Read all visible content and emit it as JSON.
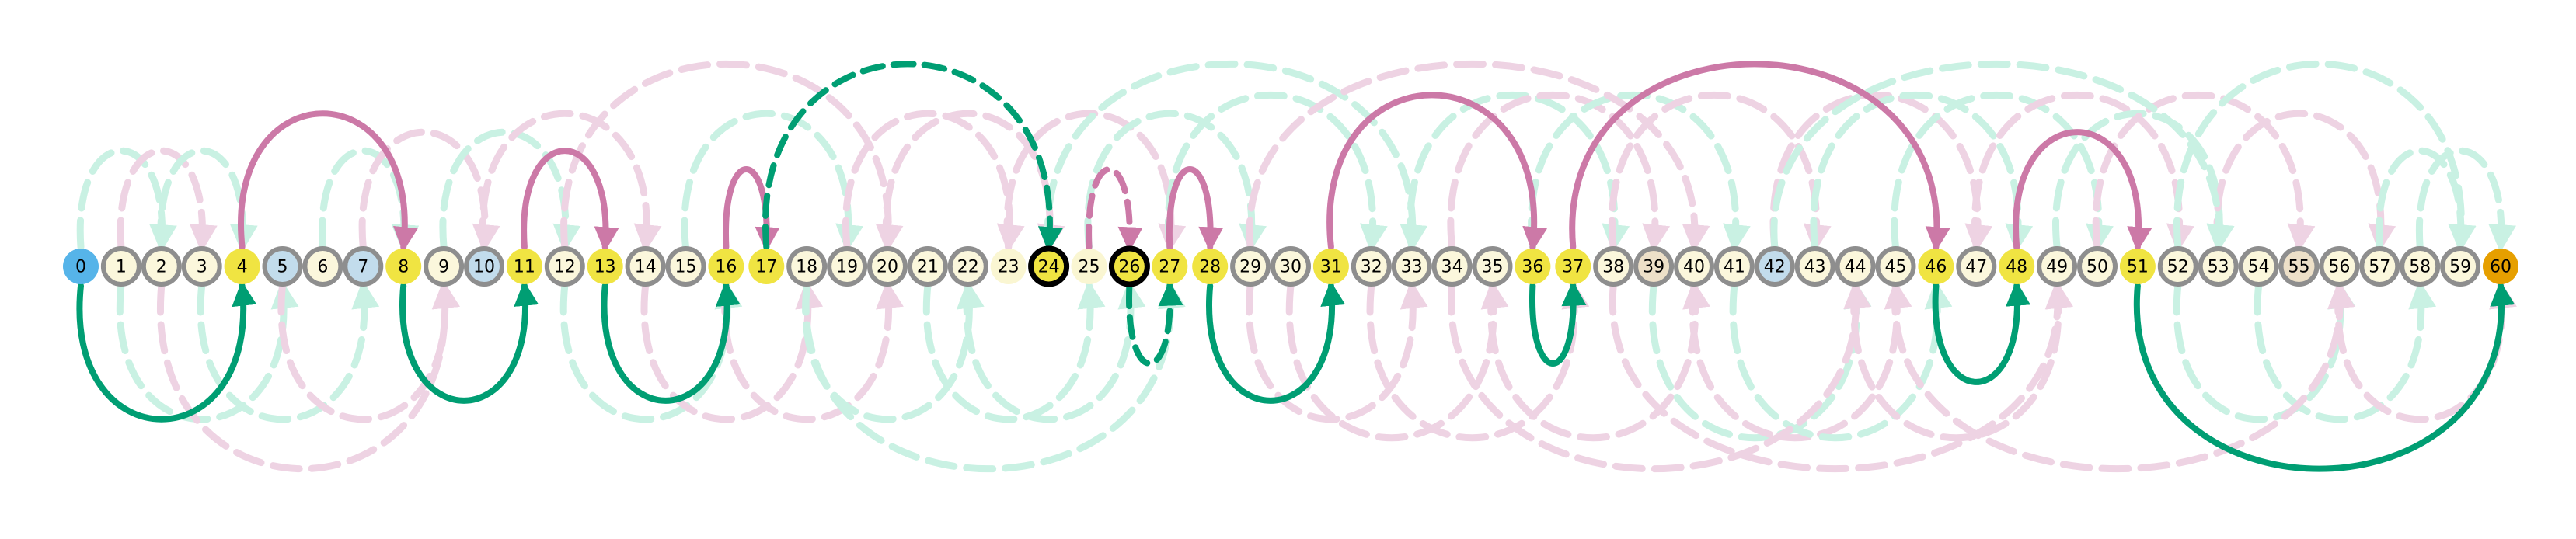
{
  "colors": {
    "bg": "#ffffff",
    "green": "#009E73",
    "pink": "#CC79A7",
    "green_faint": "#c9f1e3",
    "pink_faint": "#eed3e3",
    "yellow": "#F0E442",
    "cream": "#FAF6D2",
    "cream_node": "#FBF7DC",
    "lightblue": "#C2DCEC",
    "tan": "#EDE0C8",
    "blue": "#56B4E9",
    "orange": "#E69F00",
    "ring_gray": "#8E8E8E",
    "ring_black": "#000000"
  },
  "nodes": [
    {
      "label": "0",
      "style": "blue"
    },
    {
      "label": "1",
      "style": "cream"
    },
    {
      "label": "2",
      "style": "cream"
    },
    {
      "label": "3",
      "style": "cream"
    },
    {
      "label": "4",
      "style": "yellow"
    },
    {
      "label": "5",
      "style": "lightblue"
    },
    {
      "label": "6",
      "style": "cream"
    },
    {
      "label": "7",
      "style": "lightblue"
    },
    {
      "label": "8",
      "style": "yellow"
    },
    {
      "label": "9",
      "style": "cream"
    },
    {
      "label": "10",
      "style": "lightblue"
    },
    {
      "label": "11",
      "style": "yellow"
    },
    {
      "label": "12",
      "style": "cream"
    },
    {
      "label": "13",
      "style": "yellow"
    },
    {
      "label": "14",
      "style": "cream"
    },
    {
      "label": "15",
      "style": "cream"
    },
    {
      "label": "16",
      "style": "yellow"
    },
    {
      "label": "17",
      "style": "yellow"
    },
    {
      "label": "18",
      "style": "cream"
    },
    {
      "label": "19",
      "style": "cream"
    },
    {
      "label": "20",
      "style": "cream"
    },
    {
      "label": "21",
      "style": "cream"
    },
    {
      "label": "22",
      "style": "cream"
    },
    {
      "label": "23",
      "style": "plain"
    },
    {
      "label": "24",
      "style": "current"
    },
    {
      "label": "25",
      "style": "plain"
    },
    {
      "label": "26",
      "style": "current"
    },
    {
      "label": "27",
      "style": "yellow"
    },
    {
      "label": "28",
      "style": "yellow"
    },
    {
      "label": "29",
      "style": "cream"
    },
    {
      "label": "30",
      "style": "cream"
    },
    {
      "label": "31",
      "style": "yellow"
    },
    {
      "label": "32",
      "style": "cream"
    },
    {
      "label": "33",
      "style": "cream"
    },
    {
      "label": "34",
      "style": "cream"
    },
    {
      "label": "35",
      "style": "cream"
    },
    {
      "label": "36",
      "style": "yellow"
    },
    {
      "label": "37",
      "style": "yellow"
    },
    {
      "label": "38",
      "style": "cream"
    },
    {
      "label": "39",
      "style": "tan"
    },
    {
      "label": "40",
      "style": "cream"
    },
    {
      "label": "41",
      "style": "cream"
    },
    {
      "label": "42",
      "style": "lightblue"
    },
    {
      "label": "43",
      "style": "cream"
    },
    {
      "label": "44",
      "style": "cream"
    },
    {
      "label": "45",
      "style": "cream"
    },
    {
      "label": "46",
      "style": "yellow"
    },
    {
      "label": "47",
      "style": "cream"
    },
    {
      "label": "48",
      "style": "yellow"
    },
    {
      "label": "49",
      "style": "cream"
    },
    {
      "label": "50",
      "style": "cream"
    },
    {
      "label": "51",
      "style": "yellow"
    },
    {
      "label": "52",
      "style": "cream"
    },
    {
      "label": "53",
      "style": "cream"
    },
    {
      "label": "54",
      "style": "cream"
    },
    {
      "label": "55",
      "style": "tan"
    },
    {
      "label": "56",
      "style": "cream"
    },
    {
      "label": "57",
      "style": "cream"
    },
    {
      "label": "58",
      "style": "cream"
    },
    {
      "label": "59",
      "style": "cream"
    },
    {
      "label": "60",
      "style": "orange"
    }
  ],
  "bold_edges": [
    {
      "from": 0,
      "to": 4,
      "color": "green",
      "side": "below",
      "dashed": false
    },
    {
      "from": 4,
      "to": 8,
      "color": "pink",
      "side": "above",
      "dashed": false
    },
    {
      "from": 8,
      "to": 11,
      "color": "green",
      "side": "below",
      "dashed": false
    },
    {
      "from": 11,
      "to": 13,
      "color": "pink",
      "side": "above",
      "dashed": false
    },
    {
      "from": 13,
      "to": 16,
      "color": "green",
      "side": "below",
      "dashed": false
    },
    {
      "from": 16,
      "to": 17,
      "color": "pink",
      "side": "above",
      "dashed": false
    },
    {
      "from": 17,
      "to": 24,
      "color": "green",
      "side": "above",
      "dashed": true
    },
    {
      "from": 25,
      "to": 26,
      "color": "pink",
      "side": "above",
      "dashed": true
    },
    {
      "from": 26,
      "to": 27,
      "color": "green",
      "side": "below",
      "dashed": true
    },
    {
      "from": 27,
      "to": 28,
      "color": "pink",
      "side": "above",
      "dashed": false
    },
    {
      "from": 28,
      "to": 31,
      "color": "green",
      "side": "below",
      "dashed": false
    },
    {
      "from": 31,
      "to": 36,
      "color": "pink",
      "side": "above",
      "dashed": false
    },
    {
      "from": 36,
      "to": 37,
      "color": "green",
      "side": "below",
      "dashed": false
    },
    {
      "from": 37,
      "to": 46,
      "color": "pink",
      "side": "above",
      "dashed": false
    },
    {
      "from": 46,
      "to": 48,
      "color": "green",
      "side": "below",
      "dashed": false
    },
    {
      "from": 48,
      "to": 51,
      "color": "pink",
      "side": "above",
      "dashed": false
    },
    {
      "from": 51,
      "to": 60,
      "color": "green",
      "side": "below",
      "dashed": false
    }
  ],
  "faint_edges": [
    {
      "from": 0,
      "to": 2,
      "color": "green",
      "side": "above"
    },
    {
      "from": 1,
      "to": 3,
      "color": "pink",
      "side": "above"
    },
    {
      "from": 2,
      "to": 4,
      "color": "green",
      "side": "above"
    },
    {
      "from": 1,
      "to": 5,
      "color": "green",
      "side": "below"
    },
    {
      "from": 3,
      "to": 7,
      "color": "green",
      "side": "below"
    },
    {
      "from": 5,
      "to": 9,
      "color": "pink",
      "side": "below"
    },
    {
      "from": 6,
      "to": 8,
      "color": "green",
      "side": "above"
    },
    {
      "from": 7,
      "to": 10,
      "color": "pink",
      "side": "above"
    },
    {
      "from": 9,
      "to": 12,
      "color": "green",
      "side": "above"
    },
    {
      "from": 10,
      "to": 14,
      "color": "pink",
      "side": "above"
    },
    {
      "from": 12,
      "to": 16,
      "color": "green",
      "side": "below"
    },
    {
      "from": 14,
      "to": 18,
      "color": "pink",
      "side": "below"
    },
    {
      "from": 15,
      "to": 19,
      "color": "green",
      "side": "above"
    },
    {
      "from": 16,
      "to": 20,
      "color": "pink",
      "side": "below"
    },
    {
      "from": 18,
      "to": 22,
      "color": "green",
      "side": "below"
    },
    {
      "from": 19,
      "to": 23,
      "color": "pink",
      "side": "above"
    },
    {
      "from": 20,
      "to": 24,
      "color": "pink",
      "side": "above"
    },
    {
      "from": 21,
      "to": 25,
      "color": "green",
      "side": "below"
    },
    {
      "from": 22,
      "to": 26,
      "color": "green",
      "side": "below"
    },
    {
      "from": 23,
      "to": 27,
      "color": "pink",
      "side": "above"
    },
    {
      "from": 25,
      "to": 29,
      "color": "green",
      "side": "above"
    },
    {
      "from": 27,
      "to": 32,
      "color": "green",
      "side": "above"
    },
    {
      "from": 29,
      "to": 33,
      "color": "pink",
      "side": "below"
    },
    {
      "from": 30,
      "to": 35,
      "color": "pink",
      "side": "below"
    },
    {
      "from": 32,
      "to": 37,
      "color": "pink",
      "side": "below"
    },
    {
      "from": 33,
      "to": 38,
      "color": "green",
      "side": "above"
    },
    {
      "from": 34,
      "to": 39,
      "color": "pink",
      "side": "above"
    },
    {
      "from": 35,
      "to": 40,
      "color": "pink",
      "side": "below"
    },
    {
      "from": 36,
      "to": 41,
      "color": "green",
      "side": "above"
    },
    {
      "from": 38,
      "to": 43,
      "color": "pink",
      "side": "above"
    },
    {
      "from": 39,
      "to": 44,
      "color": "green",
      "side": "below"
    },
    {
      "from": 40,
      "to": 45,
      "color": "pink",
      "side": "below"
    },
    {
      "from": 41,
      "to": 46,
      "color": "green",
      "side": "below"
    },
    {
      "from": 42,
      "to": 47,
      "color": "pink",
      "side": "above"
    },
    {
      "from": 43,
      "to": 48,
      "color": "green",
      "side": "above"
    },
    {
      "from": 44,
      "to": 49,
      "color": "pink",
      "side": "below"
    },
    {
      "from": 45,
      "to": 50,
      "color": "green",
      "side": "above"
    },
    {
      "from": 47,
      "to": 52,
      "color": "pink",
      "side": "above"
    },
    {
      "from": 49,
      "to": 53,
      "color": "green",
      "side": "above"
    },
    {
      "from": 50,
      "to": 55,
      "color": "pink",
      "side": "above"
    },
    {
      "from": 52,
      "to": 56,
      "color": "green",
      "side": "below"
    },
    {
      "from": 53,
      "to": 57,
      "color": "pink",
      "side": "above"
    },
    {
      "from": 54,
      "to": 58,
      "color": "green",
      "side": "below"
    },
    {
      "from": 56,
      "to": 60,
      "color": "pink",
      "side": "below"
    },
    {
      "from": 57,
      "to": 59,
      "color": "green",
      "side": "above"
    },
    {
      "from": 58,
      "to": 60,
      "color": "green",
      "side": "above"
    },
    {
      "from": 2,
      "to": 9,
      "color": "pink",
      "side": "below"
    },
    {
      "from": 12,
      "to": 20,
      "color": "pink",
      "side": "above"
    },
    {
      "from": 18,
      "to": 27,
      "color": "green",
      "side": "below"
    },
    {
      "from": 24,
      "to": 33,
      "color": "green",
      "side": "above"
    },
    {
      "from": 29,
      "to": 40,
      "color": "pink",
      "side": "above"
    },
    {
      "from": 34,
      "to": 44,
      "color": "pink",
      "side": "below"
    },
    {
      "from": 38,
      "to": 49,
      "color": "pink",
      "side": "below"
    },
    {
      "from": 42,
      "to": 53,
      "color": "green",
      "side": "above"
    },
    {
      "from": 45,
      "to": 56,
      "color": "pink",
      "side": "below"
    },
    {
      "from": 52,
      "to": 59,
      "color": "green",
      "side": "above"
    }
  ]
}
